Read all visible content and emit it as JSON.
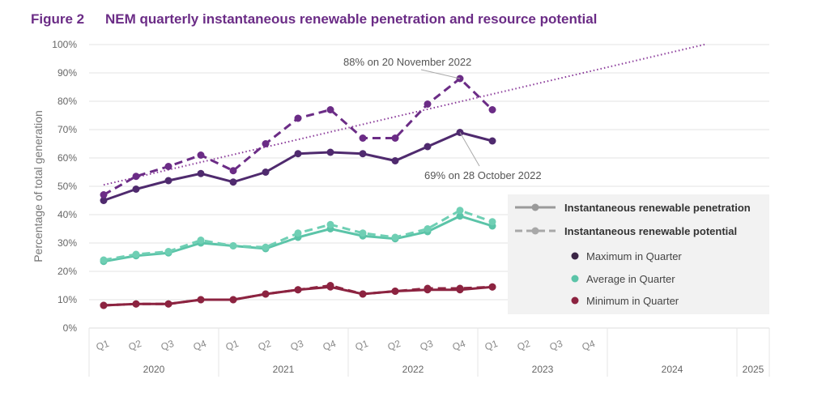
{
  "figure_label": "Figure 2",
  "title": "NEM quarterly instantaneous renewable penetration and resource potential",
  "chart_data": {
    "type": "line",
    "ylabel": "Percentage of total generation",
    "ylim": [
      0,
      100
    ],
    "yticks": [
      "0%",
      "10%",
      "20%",
      "30%",
      "40%",
      "50%",
      "60%",
      "70%",
      "80%",
      "90%",
      "100%"
    ],
    "years": [
      "2020",
      "2021",
      "2022",
      "2023",
      "2024",
      "2025"
    ],
    "quarter_labels": [
      "Q1",
      "Q2",
      "Q3",
      "Q4",
      "Q1",
      "Q2",
      "Q3",
      "Q4",
      "Q1",
      "Q2",
      "Q3",
      "Q4",
      "Q1",
      "Q2",
      "Q3",
      "Q4"
    ],
    "grid": true,
    "colors": {
      "max": "#5b2d7a",
      "max_potential": "#6b2c86",
      "avg": "#5bc4a8",
      "min": "#8c2340",
      "trend": "#8a3a9a"
    },
    "series": [
      {
        "key": "max_pen",
        "style": "solid",
        "color": "#4f2a6e",
        "values": [
          45,
          49,
          52,
          54.5,
          51.5,
          55,
          61.5,
          62,
          61.5,
          59,
          64,
          69,
          66
        ]
      },
      {
        "key": "max_pot",
        "style": "dashed",
        "color": "#6b2c86",
        "values": [
          47,
          53.5,
          57,
          61,
          55.5,
          65,
          74,
          77,
          67,
          67,
          79,
          88,
          77
        ]
      },
      {
        "key": "avg_pen",
        "style": "solid",
        "color": "#5bc4a8",
        "values": [
          23.5,
          25.5,
          26.5,
          30,
          29,
          28,
          32,
          35,
          32.5,
          31.5,
          34,
          39.5,
          36
        ]
      },
      {
        "key": "avg_pot",
        "style": "dashed",
        "color": "#6fcfb4",
        "values": [
          24,
          26,
          27,
          31,
          29,
          28.5,
          33.5,
          36.5,
          33.5,
          32,
          35,
          41.5,
          37.5
        ]
      },
      {
        "key": "min_pen",
        "style": "solid",
        "color": "#8c2340",
        "values": [
          8,
          8.5,
          8.5,
          10,
          10,
          12,
          13.5,
          14.5,
          12,
          13,
          13.5,
          13.5,
          14.5
        ]
      },
      {
        "key": "min_pot",
        "style": "dashed",
        "color": "#8c2340",
        "values": [
          8,
          8.5,
          8.5,
          10,
          10,
          12,
          13.5,
          15,
          12,
          13,
          14,
          14,
          14.5
        ]
      }
    ],
    "trendline": {
      "style": "dotted",
      "start": 50.5,
      "end": 100
    },
    "annotations": [
      "88% on 20 November 2022",
      "69% on 28 October 2022"
    ],
    "legend": {
      "placement": "right",
      "items": [
        "Instantaneous renewable penetration",
        "Instantaneous renewable potential",
        "Maximum in Quarter",
        "Average in Quarter",
        "Minimum in Quarter"
      ]
    }
  }
}
